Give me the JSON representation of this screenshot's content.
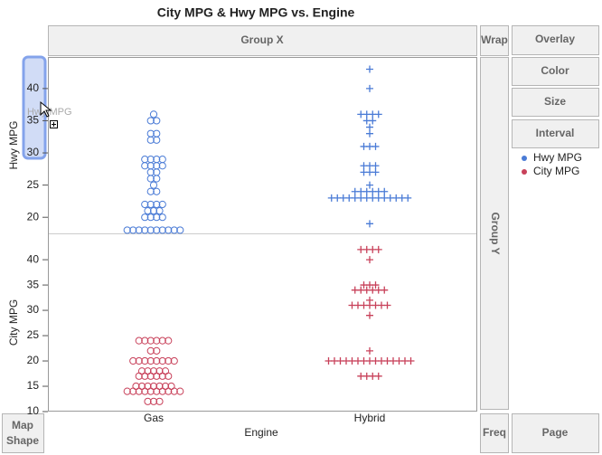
{
  "chart_data": {
    "type": "beeswarm",
    "title": "City MPG & Hwy MPG vs. Engine",
    "xlabel": "Engine",
    "categories": [
      "Gas",
      "Hybrid"
    ],
    "markers": [
      "circle",
      "plus"
    ],
    "series": [
      {
        "name": "Hwy MPG",
        "color": "#4a7bd6",
        "ylim": [
          17.5,
          44.9
        ],
        "yticks": [
          20,
          25,
          30,
          35,
          40
        ],
        "values": [
          [
            36,
            35,
            35,
            33,
            33,
            32,
            32,
            29,
            29,
            29,
            29,
            28,
            28,
            28,
            28,
            27,
            27,
            26,
            26,
            25,
            24,
            24,
            22,
            22,
            22,
            22,
            21,
            21,
            21,
            20,
            20,
            20,
            20,
            18,
            18,
            18,
            18,
            18,
            18,
            18,
            18,
            18,
            18
          ],
          [
            43,
            40,
            36,
            36,
            36,
            36,
            35,
            35,
            34,
            33,
            31,
            31,
            31,
            28,
            28,
            28,
            27,
            27,
            27,
            25,
            24,
            24,
            24,
            24,
            24,
            24,
            23,
            23,
            23,
            23,
            23,
            23,
            23,
            23,
            23,
            23,
            23,
            23,
            23,
            23,
            19
          ]
        ]
      },
      {
        "name": "City MPG",
        "color": "#c8415a",
        "ylim": [
          10,
          45.2
        ],
        "yticks": [
          10,
          15,
          20,
          25,
          30,
          35,
          40
        ],
        "values": [
          [
            24,
            24,
            24,
            24,
            24,
            24,
            22,
            22,
            20,
            20,
            20,
            20,
            20,
            20,
            20,
            20,
            18,
            18,
            18,
            18,
            18,
            17,
            17,
            17,
            17,
            17,
            17,
            15,
            15,
            15,
            15,
            15,
            15,
            15,
            14,
            14,
            14,
            14,
            14,
            14,
            14,
            14,
            14,
            14,
            12,
            12,
            12
          ],
          [
            42,
            42,
            42,
            42,
            40,
            35,
            35,
            35,
            34,
            34,
            34,
            34,
            34,
            34,
            32,
            31,
            31,
            31,
            31,
            31,
            31,
            31,
            29,
            22,
            20,
            20,
            20,
            20,
            20,
            20,
            20,
            20,
            20,
            20,
            20,
            20,
            20,
            20,
            20,
            17,
            17,
            17,
            17
          ]
        ]
      }
    ]
  },
  "ui": {
    "group_x": "Group X",
    "group_y": "Group Y",
    "wrap": "Wrap",
    "overlay": "Overlay",
    "color": "Color",
    "size": "Size",
    "interval": "Interval",
    "map_shape": [
      "Map",
      "Shape"
    ],
    "freq": "Freq",
    "page": "Page",
    "drag_label": "Hwy MPG"
  }
}
